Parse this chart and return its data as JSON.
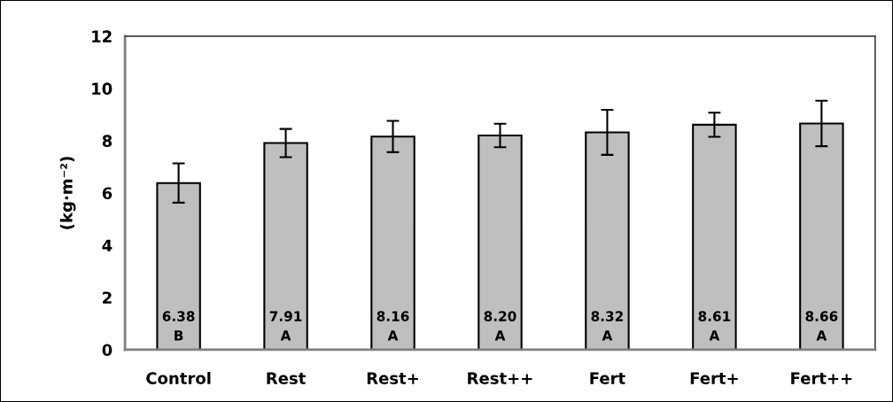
{
  "chart_data": {
    "type": "bar",
    "ylabel": "(kg·m⁻²)",
    "categories": [
      "Control",
      "Rest",
      "Rest+",
      "Rest++",
      "Fert",
      "Fert+",
      "Fert++"
    ],
    "values": [
      6.38,
      7.91,
      8.16,
      8.2,
      8.32,
      8.61,
      8.66
    ],
    "errors": [
      0.75,
      0.54,
      0.6,
      0.45,
      0.86,
      0.46,
      0.87
    ],
    "value_labels": [
      "6.38\nB",
      "7.91\nA",
      "8.16\nA",
      "8.20\nA",
      "8.32\nA",
      "8.61\nA",
      "8.66\nA"
    ],
    "color": "#bfbfbf",
    "ylim": [
      0,
      12
    ],
    "yticks": [
      0,
      2,
      4,
      6,
      8,
      10,
      12
    ],
    "grid": false
  }
}
